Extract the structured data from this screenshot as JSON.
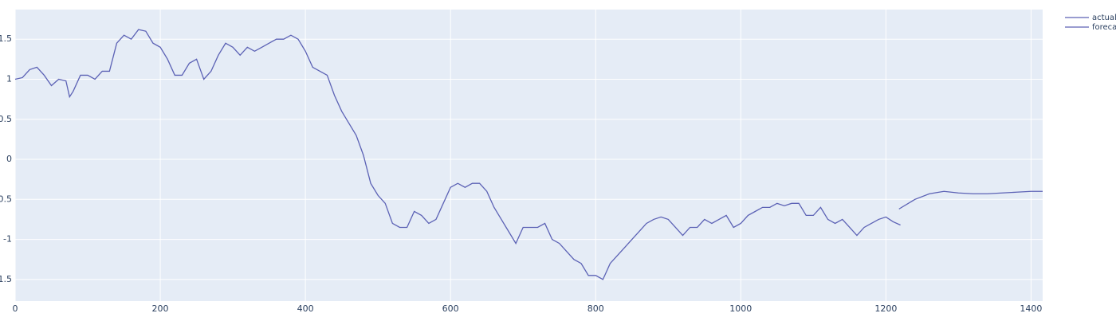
{
  "chart_data": {
    "type": "line",
    "xlim": [
      0,
      1416
    ],
    "ylim": [
      -1.77,
      1.87
    ],
    "xticks": [
      0,
      200,
      400,
      600,
      800,
      1000,
      1200,
      1400
    ],
    "yticks": [
      -1.5,
      -1,
      -0.5,
      0,
      0.5,
      1,
      1.5
    ],
    "grid": true,
    "legend": "top-right",
    "series": [
      {
        "name": "actual",
        "color": "#5c62b5",
        "x": [
          0,
          10,
          20,
          30,
          40,
          50,
          60,
          70,
          75,
          80,
          90,
          100,
          110,
          120,
          130,
          140,
          150,
          160,
          170,
          180,
          190,
          200,
          210,
          220,
          230,
          240,
          250,
          260,
          270,
          280,
          290,
          300,
          310,
          320,
          330,
          340,
          350,
          360,
          370,
          380,
          390,
          400,
          410,
          420,
          430,
          440,
          450,
          460,
          470,
          480,
          490,
          500,
          510,
          520,
          530,
          540,
          550,
          560,
          570,
          580,
          590,
          600,
          610,
          620,
          630,
          640,
          650,
          660,
          670,
          680,
          690,
          700,
          710,
          720,
          730,
          740,
          750,
          760,
          770,
          780,
          790,
          800,
          810,
          820,
          830,
          840,
          850,
          860,
          870,
          880,
          890,
          900,
          910,
          920,
          930,
          940,
          950,
          960,
          970,
          980,
          990,
          1000,
          1010,
          1020,
          1030,
          1040,
          1050,
          1060,
          1070,
          1080,
          1090,
          1100,
          1110,
          1120,
          1130,
          1140,
          1150,
          1160,
          1170,
          1180,
          1190,
          1200,
          1210,
          1220
        ],
        "values": [
          1.0,
          1.02,
          1.12,
          1.15,
          1.05,
          0.92,
          1.0,
          0.98,
          0.78,
          0.85,
          1.05,
          1.05,
          1.0,
          1.1,
          1.1,
          1.45,
          1.55,
          1.5,
          1.62,
          1.6,
          1.45,
          1.4,
          1.25,
          1.05,
          1.05,
          1.2,
          1.25,
          1.0,
          1.1,
          1.3,
          1.45,
          1.4,
          1.3,
          1.4,
          1.35,
          1.4,
          1.45,
          1.5,
          1.5,
          1.55,
          1.5,
          1.35,
          1.15,
          1.1,
          1.05,
          0.8,
          0.6,
          0.45,
          0.3,
          0.05,
          -0.3,
          -0.45,
          -0.55,
          -0.8,
          -0.85,
          -0.85,
          -0.65,
          -0.7,
          -0.8,
          -0.75,
          -0.55,
          -0.35,
          -0.3,
          -0.35,
          -0.3,
          -0.3,
          -0.4,
          -0.6,
          -0.75,
          -0.9,
          -1.05,
          -0.85,
          -0.85,
          -0.85,
          -0.8,
          -1.0,
          -1.05,
          -1.15,
          -1.25,
          -1.3,
          -1.45,
          -1.45,
          -1.5,
          -1.3,
          -1.2,
          -1.1,
          -1.0,
          -0.9,
          -0.8,
          -0.75,
          -0.72,
          -0.75,
          -0.85,
          -0.95,
          -0.85,
          -0.85,
          -0.75,
          -0.8,
          -0.75,
          -0.7,
          -0.85,
          -0.8,
          -0.7,
          -0.65,
          -0.6,
          -0.6,
          -0.55,
          -0.58,
          -0.55,
          -0.55,
          -0.7,
          -0.7,
          -0.6,
          -0.75,
          -0.8,
          -0.75,
          -0.85,
          -0.95,
          -0.85,
          -0.8,
          -0.75,
          -0.72,
          -0.78,
          -0.82
        ]
      },
      {
        "name": "forecast",
        "color": "#5c62b5",
        "x": [
          1218,
          1240,
          1260,
          1280,
          1300,
          1320,
          1340,
          1360,
          1380,
          1400,
          1416
        ],
        "values": [
          -0.62,
          -0.5,
          -0.43,
          -0.4,
          -0.42,
          -0.43,
          -0.43,
          -0.42,
          -0.41,
          -0.4,
          -0.4
        ]
      }
    ]
  }
}
